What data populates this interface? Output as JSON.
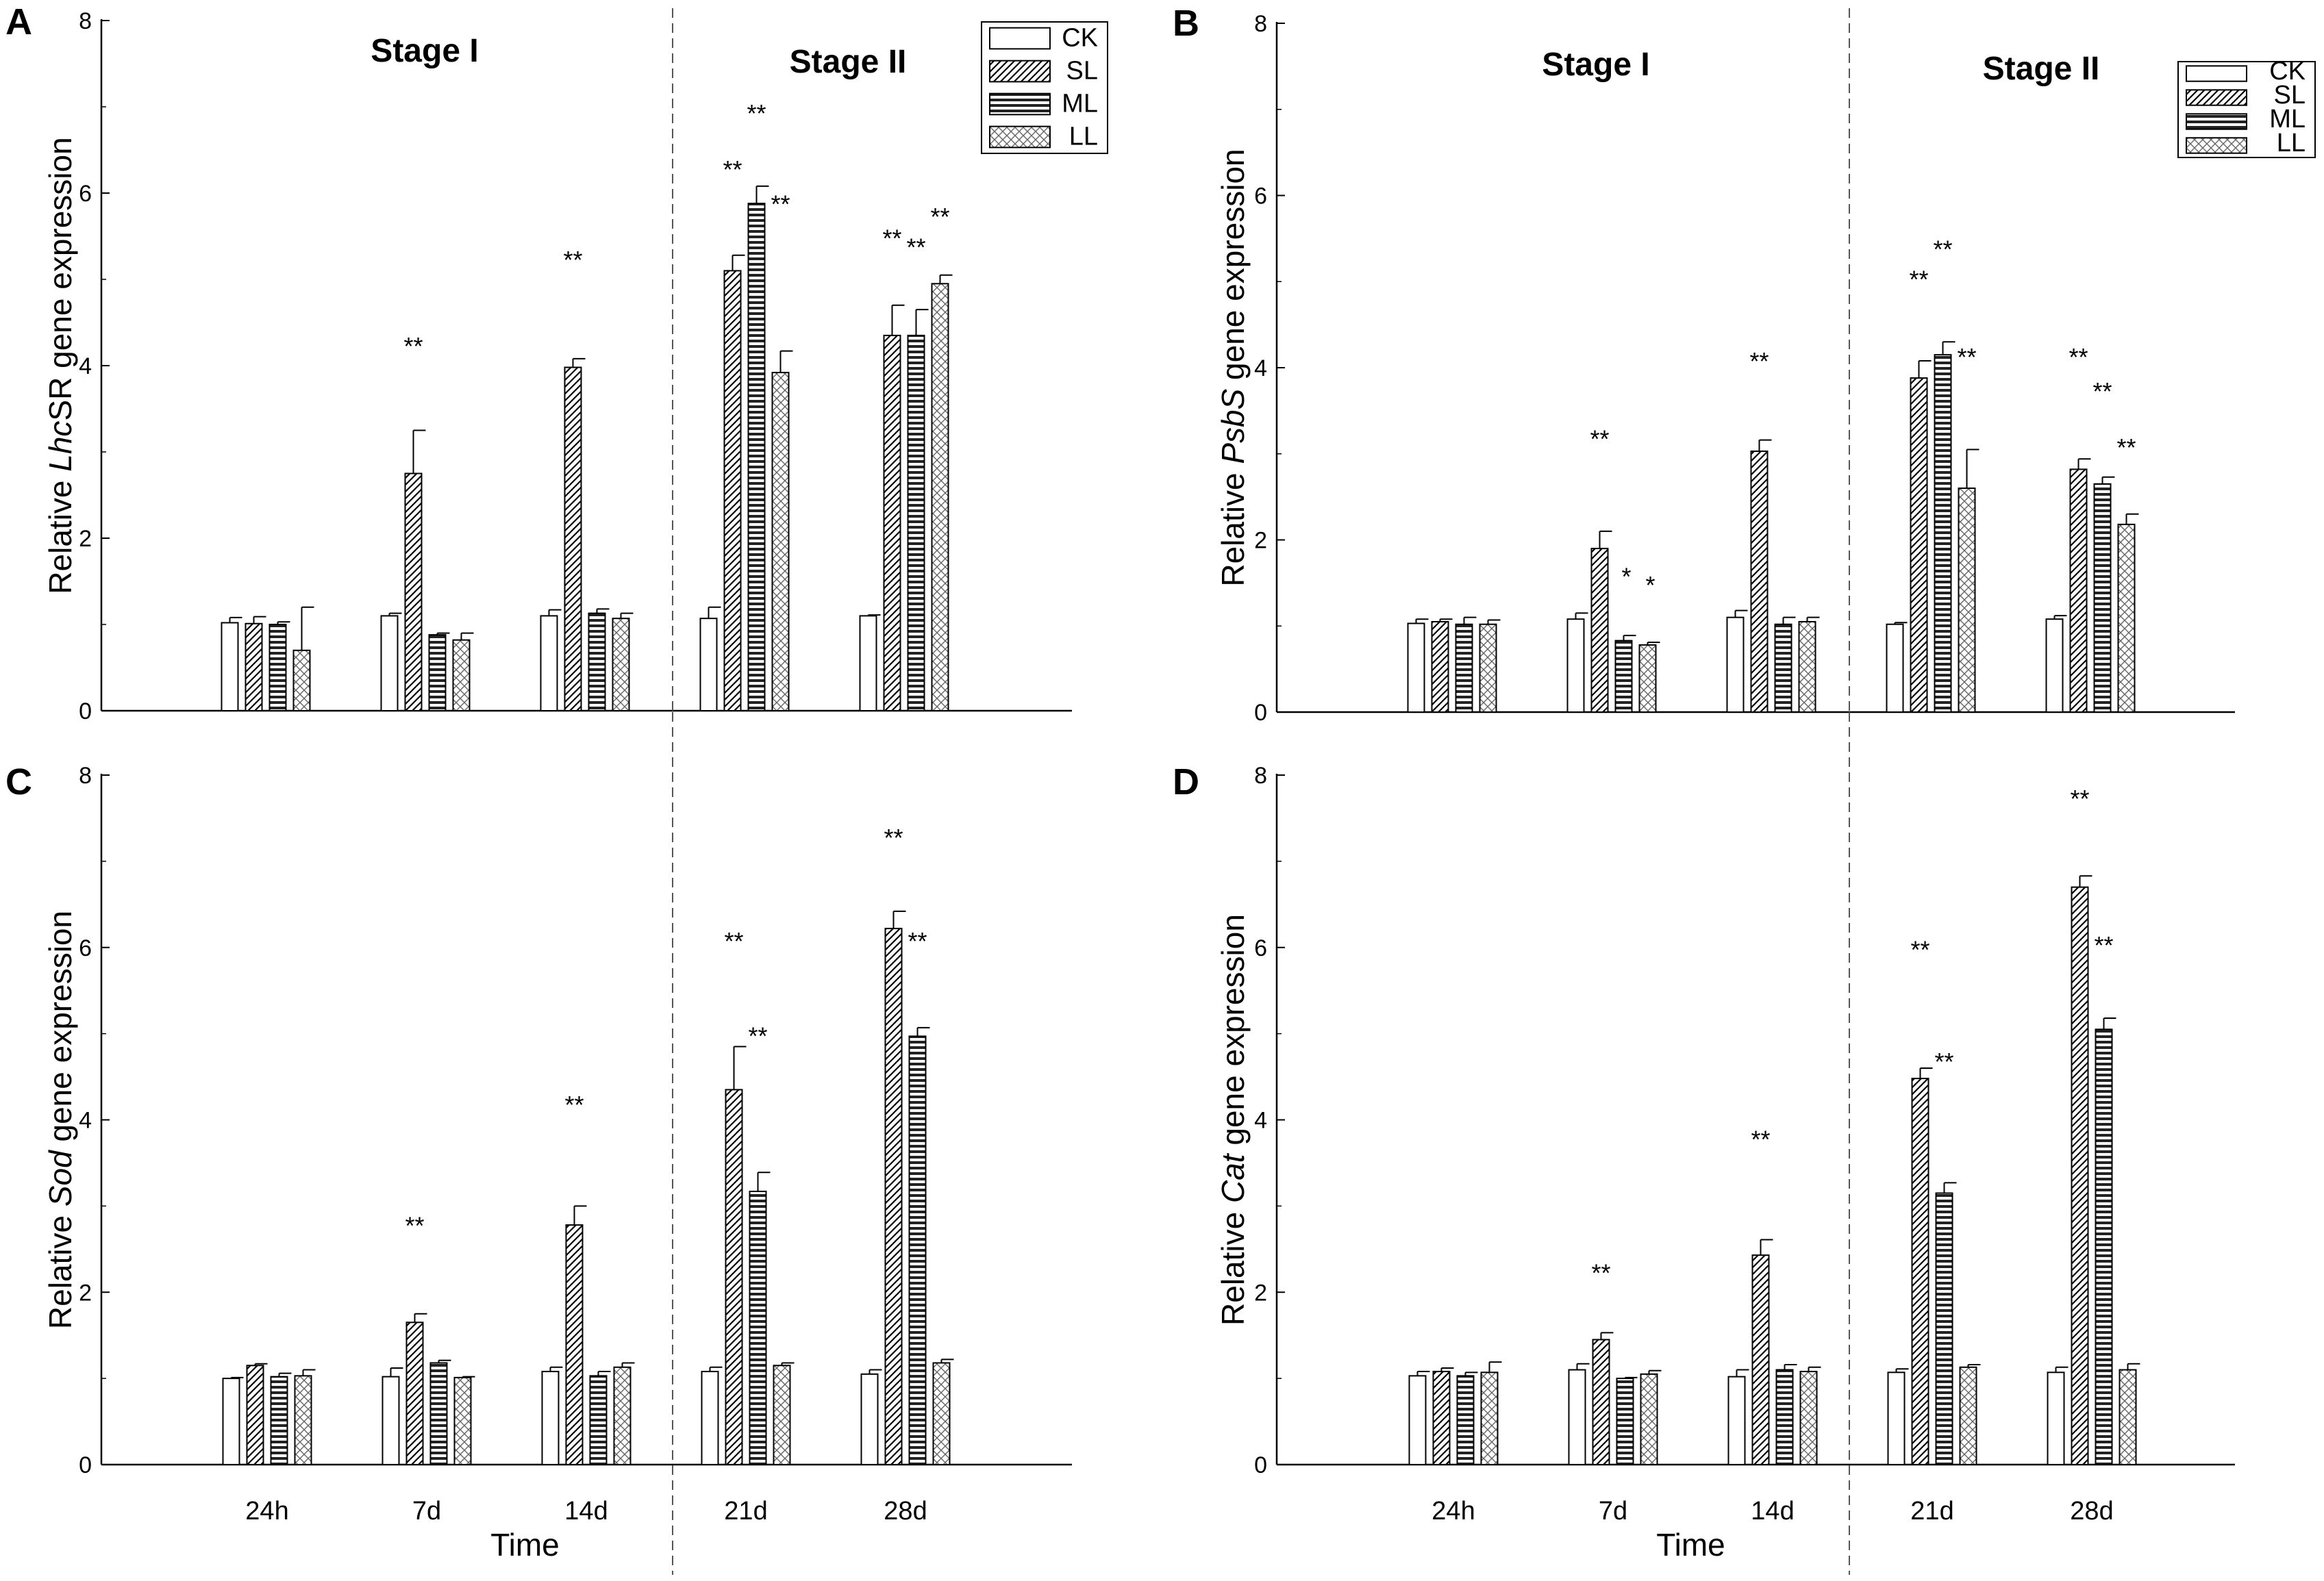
{
  "figure": {
    "stage_labels": [
      "Stage I",
      "Stage II"
    ],
    "x_title": "Time"
  },
  "legend": [
    {
      "name": "CK",
      "pattern": "empty"
    },
    {
      "name": "SL",
      "pattern": "diagonal"
    },
    {
      "name": "ML",
      "pattern": "horizontal"
    },
    {
      "name": "LL",
      "pattern": "crosshatch"
    }
  ],
  "chart_data": [
    {
      "panel": "A",
      "type": "bar",
      "ylabel_pre": "Relative ",
      "ylabel_gene": "LhcSR",
      "ylabel_italic_part": "Lhc",
      "ylabel_post": " gene expression",
      "categories": [
        "24h",
        "7d",
        "14d",
        "21d",
        "28d"
      ],
      "ylim": [
        0,
        8
      ],
      "yticks": [
        "0",
        "2",
        "4",
        "6",
        "8"
      ],
      "series": [
        {
          "name": "CK",
          "values": [
            1.02,
            1.1,
            1.1,
            1.07,
            1.1
          ],
          "errors": [
            0.06,
            0.03,
            0.07,
            0.13,
            0.01
          ]
        },
        {
          "name": "SL",
          "values": [
            1.01,
            2.75,
            3.98,
            5.1,
            4.35
          ],
          "errors": [
            0.08,
            0.5,
            0.1,
            0.18,
            0.35
          ]
        },
        {
          "name": "ML",
          "values": [
            1.0,
            0.88,
            1.13,
            5.88,
            4.35
          ],
          "errors": [
            0.03,
            0.02,
            0.05,
            0.2,
            0.3
          ]
        },
        {
          "name": "LL",
          "values": [
            0.7,
            0.82,
            1.07,
            3.92,
            4.95
          ],
          "errors": [
            0.5,
            0.08,
            0.06,
            0.25,
            0.1
          ]
        }
      ],
      "annotations": [
        {
          "text": "**",
          "cat": 1,
          "series": 1,
          "value": 4.3
        },
        {
          "text": "**",
          "cat": 2,
          "series": 1,
          "value": 5.3
        },
        {
          "text": "**",
          "cat": 3,
          "series": 1,
          "value": 6.35
        },
        {
          "text": "**",
          "cat": 3,
          "series": 2,
          "value": 7.0
        },
        {
          "text": "**",
          "cat": 3,
          "series": 3,
          "value": 5.95
        },
        {
          "text": "**",
          "cat": 4,
          "series": 1,
          "value": 5.55
        },
        {
          "text": "**",
          "cat": 4,
          "series": 2,
          "value": 5.45
        },
        {
          "text": "**",
          "cat": 4,
          "series": 3,
          "value": 5.8
        }
      ]
    },
    {
      "panel": "B",
      "type": "bar",
      "ylabel_pre": "Relative ",
      "ylabel_gene": "PsbS",
      "ylabel_italic_part": "PsbS",
      "ylabel_post": " gene expression",
      "categories": [
        "24h",
        "7d",
        "14d",
        "21d",
        "28d"
      ],
      "ylim": [
        0,
        8
      ],
      "yticks": [
        "0",
        "2",
        "4",
        "6",
        "8"
      ],
      "series": [
        {
          "name": "CK",
          "values": [
            1.03,
            1.08,
            1.1,
            1.02,
            1.08
          ],
          "errors": [
            0.05,
            0.07,
            0.08,
            0.02,
            0.04
          ]
        },
        {
          "name": "SL",
          "values": [
            1.05,
            1.9,
            3.03,
            3.88,
            2.82
          ],
          "errors": [
            0.03,
            0.2,
            0.13,
            0.2,
            0.12
          ]
        },
        {
          "name": "ML",
          "values": [
            1.02,
            0.83,
            1.02,
            4.15,
            2.65
          ],
          "errors": [
            0.08,
            0.06,
            0.08,
            0.15,
            0.08
          ]
        },
        {
          "name": "LL",
          "values": [
            1.02,
            0.78,
            1.05,
            2.6,
            2.18
          ],
          "errors": [
            0.05,
            0.03,
            0.05,
            0.45,
            0.12
          ]
        }
      ],
      "annotations": [
        {
          "text": "**",
          "cat": 1,
          "series": 1,
          "value": 3.25
        },
        {
          "text": "*",
          "cat": 1,
          "series": 2,
          "value": 1.65
        },
        {
          "text": "*",
          "cat": 1,
          "series": 3,
          "value": 1.55
        },
        {
          "text": "**",
          "cat": 2,
          "series": 1,
          "value": 4.15
        },
        {
          "text": "**",
          "cat": 3,
          "series": 1,
          "value": 5.1
        },
        {
          "text": "**",
          "cat": 3,
          "series": 2,
          "value": 5.45
        },
        {
          "text": "**",
          "cat": 3,
          "series": 3,
          "value": 4.2
        },
        {
          "text": "**",
          "cat": 4,
          "series": 1,
          "value": 4.2
        },
        {
          "text": "**",
          "cat": 4,
          "series": 2,
          "value": 3.8
        },
        {
          "text": "**",
          "cat": 4,
          "series": 3,
          "value": 3.15
        }
      ]
    },
    {
      "panel": "C",
      "type": "bar",
      "ylabel_pre": "Relative ",
      "ylabel_gene": "Sod",
      "ylabel_italic_part": "Sod",
      "ylabel_post": " gene expression",
      "categories": [
        "24h",
        "7d",
        "14d",
        "21d",
        "28d"
      ],
      "ylim": [
        0,
        8
      ],
      "yticks": [
        "0",
        "2",
        "4",
        "6",
        "8"
      ],
      "series": [
        {
          "name": "CK",
          "values": [
            1.0,
            1.02,
            1.08,
            1.08,
            1.05
          ],
          "errors": [
            0.01,
            0.1,
            0.05,
            0.05,
            0.05
          ]
        },
        {
          "name": "SL",
          "values": [
            1.15,
            1.65,
            2.78,
            4.35,
            6.22
          ],
          "errors": [
            0.02,
            0.1,
            0.22,
            0.5,
            0.2
          ]
        },
        {
          "name": "ML",
          "values": [
            1.02,
            1.18,
            1.03,
            3.17,
            4.97
          ],
          "errors": [
            0.04,
            0.03,
            0.05,
            0.22,
            0.1
          ]
        },
        {
          "name": "LL",
          "values": [
            1.03,
            1.01,
            1.13,
            1.15,
            1.18
          ],
          "errors": [
            0.07,
            0.01,
            0.05,
            0.03,
            0.04
          ]
        }
      ],
      "annotations": [
        {
          "text": "**",
          "cat": 1,
          "series": 1,
          "value": 2.85
        },
        {
          "text": "**",
          "cat": 2,
          "series": 1,
          "value": 4.25
        },
        {
          "text": "**",
          "cat": 3,
          "series": 1,
          "value": 6.15
        },
        {
          "text": "**",
          "cat": 3,
          "series": 2,
          "value": 5.05
        },
        {
          "text": "**",
          "cat": 4,
          "series": 1,
          "value": 7.35
        },
        {
          "text": "**",
          "cat": 4,
          "series": 2,
          "value": 6.15
        }
      ]
    },
    {
      "panel": "D",
      "type": "bar",
      "ylabel_pre": "Relative ",
      "ylabel_gene": "Cat",
      "ylabel_italic_part": "Cat",
      "ylabel_post": " gene expression",
      "categories": [
        "24h",
        "7d",
        "14d",
        "21d",
        "28d"
      ],
      "ylim": [
        0,
        8
      ],
      "yticks": [
        "0",
        "2",
        "4",
        "6",
        "8"
      ],
      "series": [
        {
          "name": "CK",
          "values": [
            1.03,
            1.1,
            1.02,
            1.07,
            1.07
          ],
          "errors": [
            0.05,
            0.07,
            0.08,
            0.04,
            0.06
          ]
        },
        {
          "name": "SL",
          "values": [
            1.08,
            1.45,
            2.43,
            4.48,
            6.7
          ],
          "errors": [
            0.04,
            0.08,
            0.18,
            0.12,
            0.13
          ]
        },
        {
          "name": "ML",
          "values": [
            1.03,
            1.0,
            1.1,
            3.15,
            5.05
          ],
          "errors": [
            0.04,
            0.01,
            0.06,
            0.12,
            0.13
          ]
        },
        {
          "name": "LL",
          "values": [
            1.07,
            1.05,
            1.08,
            1.13,
            1.1
          ],
          "errors": [
            0.12,
            0.04,
            0.05,
            0.03,
            0.07
          ]
        }
      ],
      "annotations": [
        {
          "text": "**",
          "cat": 1,
          "series": 1,
          "value": 2.3
        },
        {
          "text": "**",
          "cat": 2,
          "series": 1,
          "value": 3.85
        },
        {
          "text": "**",
          "cat": 3,
          "series": 1,
          "value": 6.05
        },
        {
          "text": "**",
          "cat": 3,
          "series": 2,
          "value": 4.75
        },
        {
          "text": "**",
          "cat": 4,
          "series": 1,
          "value": 7.8
        },
        {
          "text": "**",
          "cat": 4,
          "series": 2,
          "value": 6.1
        }
      ]
    }
  ]
}
